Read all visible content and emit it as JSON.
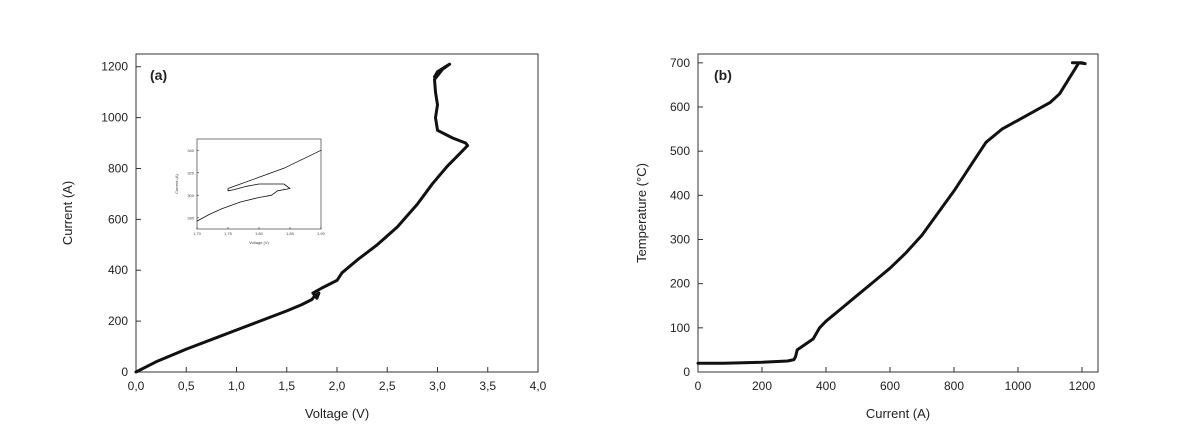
{
  "chart_data": [
    {
      "type": "line",
      "panel_label": "(a)",
      "xlabel": "Voltage (V)",
      "ylabel": "Current (A)",
      "xlim": [
        0,
        4
      ],
      "ylim": [
        0,
        1250
      ],
      "x_ticks": [
        "0,0",
        "0,5",
        "1,0",
        "1,5",
        "2,0",
        "2,5",
        "3,0",
        "3,5",
        "4,0"
      ],
      "y_ticks": [
        "0",
        "200",
        "400",
        "600",
        "800",
        "1000",
        "1200"
      ],
      "grid": false,
      "series": [
        {
          "color": "#111111",
          "x": [
            0.0,
            0.2,
            0.5,
            0.8,
            1.0,
            1.2,
            1.5,
            1.65,
            1.75,
            1.78,
            1.82,
            1.8,
            1.76,
            1.85,
            2.0,
            2.05,
            2.2,
            2.4,
            2.6,
            2.8,
            2.95,
            3.1,
            3.2,
            3.3,
            3.28,
            3.15,
            3.0,
            2.98,
            3.0,
            2.98,
            2.97,
            3.05,
            3.12,
            3.08,
            3.0,
            2.97
          ],
          "y": [
            0,
            40,
            90,
            135,
            165,
            195,
            240,
            265,
            285,
            300,
            310,
            290,
            310,
            330,
            360,
            390,
            440,
            500,
            570,
            660,
            740,
            810,
            850,
            890,
            900,
            920,
            950,
            1000,
            1050,
            1100,
            1150,
            1190,
            1210,
            1200,
            1180,
            1160
          ]
        }
      ],
      "inset": {
        "xlabel": "Voltage (V)",
        "ylabel": "Current (A)",
        "x_ticks": [
          "1,70",
          "1,75",
          "1,80",
          "1,85",
          "1,90"
        ],
        "y_ticks": [
          "280",
          "300",
          "320",
          "340"
        ],
        "xlim": [
          1.7,
          1.9
        ],
        "ylim": [
          270,
          350
        ],
        "series": [
          {
            "x": [
              1.7,
              1.72,
              1.74,
              1.77,
              1.8,
              1.82,
              1.83,
              1.85,
              1.84,
              1.8,
              1.78,
              1.76,
              1.75,
              1.75,
              1.76,
              1.8,
              1.84,
              1.87,
              1.9
            ],
            "y": [
              277,
              283,
              288,
              294,
              298,
              300,
              304,
              306,
              310,
              310,
              308,
              305,
              304,
              306,
              308,
              316,
              324,
              332,
              340
            ]
          }
        ]
      }
    },
    {
      "type": "line",
      "panel_label": "(b)",
      "xlabel": "Current (A)",
      "ylabel": "Temperature (°C)",
      "xlim": [
        0,
        1250
      ],
      "ylim": [
        0,
        720
      ],
      "x_ticks": [
        "0",
        "200",
        "400",
        "600",
        "800",
        "1000",
        "1200"
      ],
      "y_ticks": [
        "0",
        "100",
        "200",
        "300",
        "400",
        "500",
        "600",
        "700"
      ],
      "grid": false,
      "series": [
        {
          "color": "#111111",
          "x": [
            0,
            80,
            200,
            280,
            300,
            305,
            310,
            330,
            360,
            380,
            400,
            450,
            500,
            550,
            600,
            650,
            700,
            750,
            800,
            850,
            900,
            950,
            1000,
            1050,
            1100,
            1130,
            1160,
            1190,
            1210,
            1200,
            1170
          ],
          "y": [
            20,
            20,
            22,
            25,
            28,
            35,
            50,
            60,
            75,
            100,
            115,
            145,
            175,
            205,
            235,
            270,
            310,
            360,
            410,
            465,
            520,
            550,
            570,
            590,
            610,
            630,
            665,
            700,
            698,
            700,
            700
          ]
        }
      ]
    }
  ]
}
